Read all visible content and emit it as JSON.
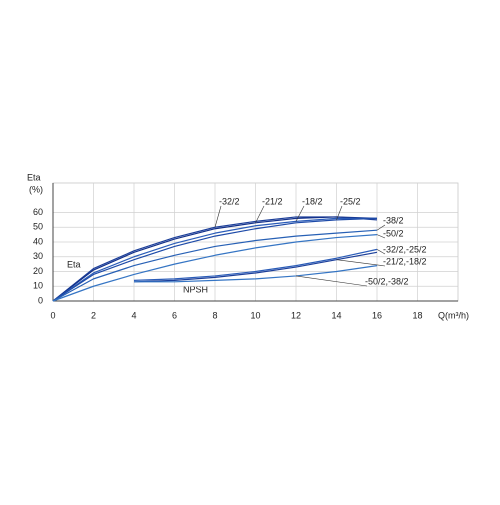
{
  "chart_data": {
    "type": "line",
    "x_label": "Q(m³/h)",
    "y_label": "Eta",
    "y_unit": "(%)",
    "annotations": [
      "Eta",
      "NPSH"
    ],
    "x": [
      0,
      2,
      4,
      6,
      8,
      10,
      12,
      14,
      16
    ],
    "series": [
      {
        "name": "-32/2",
        "color": "#1c3f9a",
        "values": [
          0,
          22,
          34,
          43,
          50,
          54,
          57,
          57,
          55
        ]
      },
      {
        "name": "-21/2",
        "color": "#12308a",
        "values": [
          0,
          21,
          33,
          42,
          49,
          53,
          56,
          57,
          56
        ]
      },
      {
        "name": "-18/2",
        "color": "#2a5cb8",
        "values": [
          0,
          19,
          30,
          39,
          46,
          51,
          54,
          56,
          56
        ]
      },
      {
        "name": "-25/2",
        "color": "#1d4aa8",
        "values": [
          0,
          18,
          28,
          37,
          44,
          49,
          53,
          55,
          56
        ]
      },
      {
        "name": "-38/2",
        "color": "#2760b5",
        "values": [
          0,
          15,
          24,
          31,
          37,
          41,
          44,
          46,
          48
        ]
      },
      {
        "name": "-50/2",
        "color": "#3575c4",
        "values": [
          0,
          10,
          18,
          25,
          31,
          36,
          40,
          43,
          45
        ]
      },
      {
        "name": "-32/2,-25/2",
        "color": "#2a5cb8",
        "values": [
          null,
          null,
          14,
          15,
          17,
          20,
          24,
          29,
          35
        ]
      },
      {
        "name": "-21/2,-18/2",
        "color": "#1c3f9a",
        "values": [
          null,
          null,
          13,
          14,
          16,
          19,
          23,
          28,
          33
        ]
      },
      {
        "name": "-50/2,-38/2",
        "color": "#3575c4",
        "values": [
          null,
          null,
          13,
          13,
          14,
          15,
          17,
          20,
          24
        ]
      }
    ],
    "xlim": [
      0,
      20
    ],
    "xticks": [
      0,
      2,
      4,
      6,
      8,
      10,
      12,
      14,
      16,
      18
    ],
    "ylim": [
      0,
      80
    ],
    "yticks": [
      0,
      10,
      20,
      30,
      40,
      50,
      60
    ],
    "grid": true
  }
}
